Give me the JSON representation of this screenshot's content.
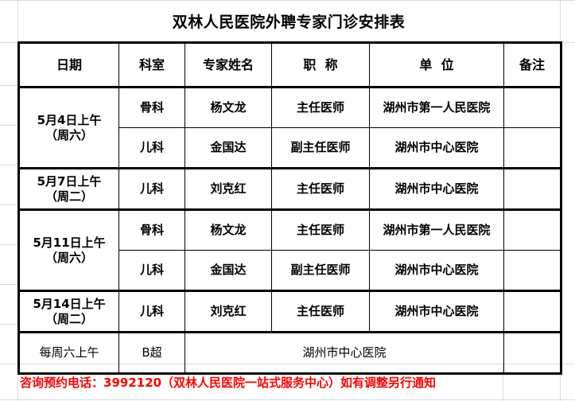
{
  "title": "双林人民医院外聘专家门诊安排表",
  "headers": [
    "日期",
    "科室",
    "专家姓名",
    "职  称",
    "单  位",
    "备注"
  ],
  "groups": [
    {
      "date": "5月4日上午",
      "weekday": "（周六）",
      "rows": [
        {
          "dept": "骨科",
          "name": "杨文龙",
          "title": "主任医师",
          "unit": "湖州市第一人民医院",
          "remark": ""
        },
        {
          "dept": "儿科",
          "name": "金国达",
          "title": "副主任医师",
          "unit": "湖州市中心医院",
          "remark": ""
        }
      ]
    },
    {
      "date": "5月7日上午",
      "weekday": "（周二）",
      "rows": [
        {
          "dept": "儿科",
          "name": "刘克红",
          "title": "主任医师",
          "unit": "湖州市中心医院",
          "remark": ""
        }
      ]
    },
    {
      "date": "5月11日上午",
      "weekday": "（周六）",
      "rows": [
        {
          "dept": "骨科",
          "name": "杨文龙",
          "title": "主任医师",
          "unit": "湖州市第一人民医院",
          "remark": ""
        },
        {
          "dept": "儿科",
          "name": "金国达",
          "title": "副主任医师",
          "unit": "湖州市中心医院",
          "remark": ""
        }
      ]
    },
    {
      "date": "5月14日上午",
      "weekday": "（周二）",
      "rows": [
        {
          "dept": "儿科",
          "name": "刘克红",
          "title": "主任医师",
          "unit": "湖州市中心医院",
          "remark": ""
        }
      ]
    }
  ],
  "weekly": {
    "date": "每周六上午",
    "dept": "B超",
    "unit": "湖州市中心医院",
    "remark": ""
  },
  "note": "咨询预约电话：3992120（双林人民医院一站式服务中心）如有调整另行通知",
  "colors": {
    "note": "#ff0000",
    "gridline": "#d4dbe6"
  }
}
